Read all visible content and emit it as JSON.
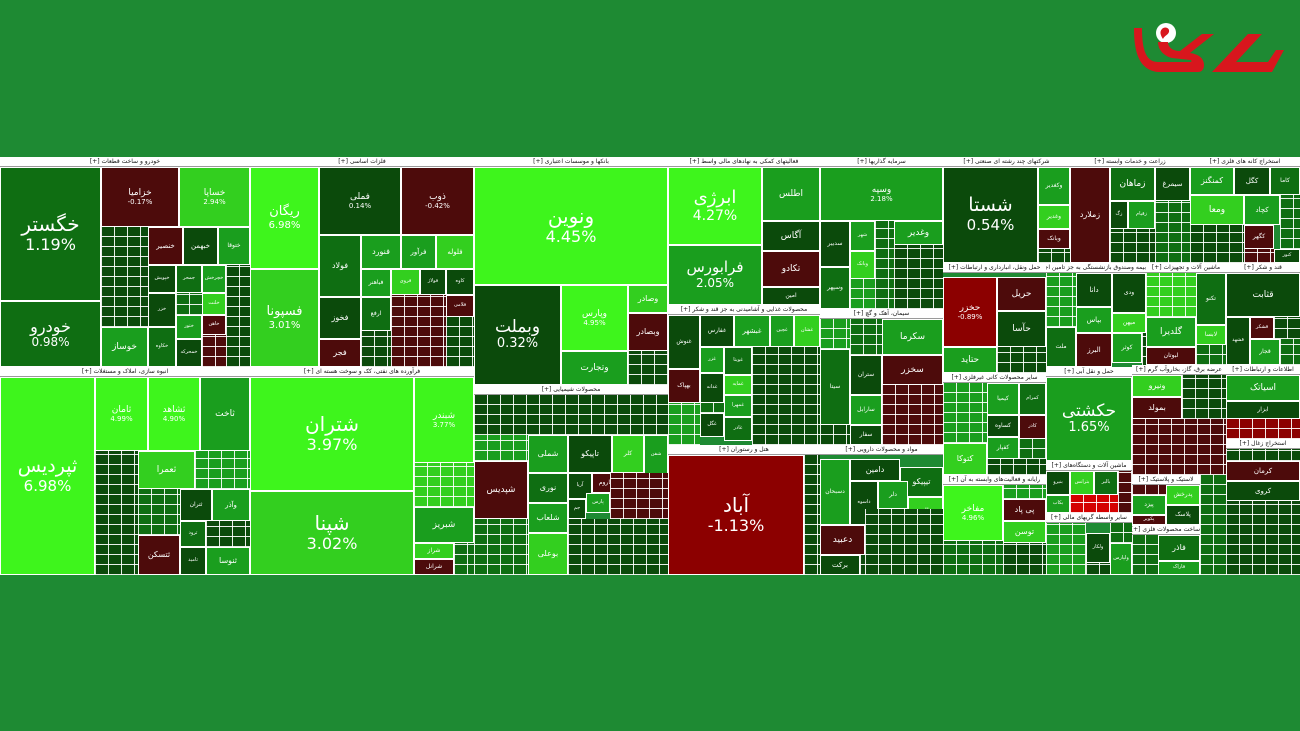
{
  "logo": {
    "name": "rokna-logo",
    "color": "#d8161d",
    "accent": "#ffffff"
  },
  "colors": {
    "background": "#1e8a33",
    "scale": [
      {
        "from": -3,
        "color": "#d40000"
      },
      {
        "from": -1.5,
        "color": "#8c0000"
      },
      {
        "from": -0.5,
        "color": "#4d0b0b"
      },
      {
        "from": 0,
        "color": "#0b4a0b"
      },
      {
        "from": 0.6,
        "color": "#0f6e12"
      },
      {
        "from": 1.2,
        "color": "#1a9e1e"
      },
      {
        "from": 2.5,
        "color": "#33cf1f"
      },
      {
        "from": 3.5,
        "color": "#3ef51c"
      }
    ]
  },
  "chart_data": {
    "type": "heatmap",
    "sectors": [
      {
        "name": "خودرو و ساخت قطعات [+]",
        "tiles": [
          {
            "symbol": "خگستر",
            "change": 1.19
          },
          {
            "symbol": "خودرو",
            "change": 0.98
          },
          {
            "symbol": "خزامیا",
            "change": -0.17
          },
          {
            "symbol": "خساپا",
            "change": 2.94
          },
          {
            "symbol": "خنصیر",
            "change": null
          },
          {
            "symbol": "خبهمن",
            "change": null
          },
          {
            "symbol": "ختوقا",
            "change": null
          },
          {
            "symbol": "خپویش",
            "change": null
          },
          {
            "symbol": "جمحر",
            "change": null
          },
          {
            "symbol": "خچرخش",
            "change": null
          },
          {
            "symbol": "خلنت",
            "change": null
          },
          {
            "symbol": "خاهن",
            "change": null
          },
          {
            "symbol": "خزر",
            "change": null
          },
          {
            "symbol": "ختور",
            "change": null
          },
          {
            "symbol": "خمحرکه",
            "change": null
          },
          {
            "symbol": "خکاوه",
            "change": null
          },
          {
            "symbol": "خوساز",
            "change": null
          }
        ]
      },
      {
        "name": "فلزات اساسی [+]",
        "tiles": [
          {
            "symbol": "ریگان",
            "change": 6.98
          },
          {
            "symbol": "فسپونا",
            "change": 3.01
          },
          {
            "symbol": "فملی",
            "change": 0.14
          },
          {
            "symbol": "ذوب",
            "change": -0.42
          },
          {
            "symbol": "فخوز",
            "change": null
          },
          {
            "symbol": "فولاد",
            "change": null
          },
          {
            "symbol": "فرآور",
            "change": null
          },
          {
            "symbol": "فلوله",
            "change": null
          },
          {
            "symbol": "فجر",
            "change": null
          },
          {
            "symbol": "فولاژ",
            "change": null
          },
          {
            "symbol": "فنورد",
            "change": null
          },
          {
            "symbol": "کاوه",
            "change": null
          },
          {
            "symbol": "ارفع",
            "change": null
          },
          {
            "symbol": "فباهنر",
            "change": null
          },
          {
            "symbol": "فروی",
            "change": null
          },
          {
            "symbol": "فلامی",
            "change": null
          }
        ]
      },
      {
        "name": "بانکها و موسسات اعتباری [+]",
        "tiles": [
          {
            "symbol": "ونوین",
            "change": 4.45
          },
          {
            "symbol": "وبملت",
            "change": 0.32
          },
          {
            "symbol": "وپارس",
            "change": 4.95
          },
          {
            "symbol": "وتجارت",
            "change": null
          },
          {
            "symbol": "وصادر",
            "change": null
          },
          {
            "symbol": "وبصادر",
            "change": null
          }
        ]
      },
      {
        "name": "فعالیتهای کمکی به نهادهای مالی واسط [+]",
        "tiles": [
          {
            "symbol": "ابرژی",
            "change": 4.27
          },
          {
            "symbol": "فرابورس",
            "change": 2.05
          },
          {
            "symbol": "تکادو",
            "change": null
          },
          {
            "symbol": "امین",
            "change": null
          },
          {
            "symbol": "اطلس",
            "change": null
          },
          {
            "symbol": "آگاس",
            "change": null
          }
        ]
      },
      {
        "name": "سرمایه گذاریها [+]",
        "tiles": [
          {
            "symbol": "وسپه",
            "change": 2.18
          },
          {
            "symbol": "وغدیر",
            "change": null
          },
          {
            "symbol": "سدبیر",
            "change": null
          },
          {
            "symbol": "وسپهر",
            "change": null
          },
          {
            "symbol": "شهر",
            "change": null
          },
          {
            "symbol": "وبانک",
            "change": null
          }
        ]
      },
      {
        "name": "شرکتهای چند رشته ای صنعتی [+]",
        "tiles": [
          {
            "symbol": "شستا",
            "change": 0.54
          },
          {
            "symbol": "وکغدیر",
            "change": null
          },
          {
            "symbol": "وغدیر",
            "change": null
          },
          {
            "symbol": "وبانک",
            "change": null
          }
        ]
      },
      {
        "name": "زراعت و خدمات وابسته [+]",
        "tiles": [
          {
            "symbol": "زملارد",
            "change": null
          },
          {
            "symbol": "سیمرغ",
            "change": null
          },
          {
            "symbol": "زقیام",
            "change": null
          },
          {
            "symbol": "زگ",
            "change": null
          },
          {
            "symbol": "زماهان",
            "change": null
          }
        ]
      },
      {
        "name": "استخراج کانه های فلزی [+]",
        "tiles": [
          {
            "symbol": "کگل",
            "change": null
          },
          {
            "symbol": "کاما",
            "change": null
          },
          {
            "symbol": "کچاد",
            "change": null
          },
          {
            "symbol": "ومعا",
            "change": null
          },
          {
            "symbol": "کگهر",
            "change": null
          },
          {
            "symbol": "کنور",
            "change": null
          },
          {
            "symbol": "کمنگنز",
            "change": null
          }
        ]
      },
      {
        "name": "انبوه سازی، املاک و مستغلات [+]",
        "tiles": [
          {
            "symbol": "ثپردیس",
            "change": 6.98
          },
          {
            "symbol": "ثامان",
            "change": 4.99
          },
          {
            "symbol": "ثشاهد",
            "change": 4.9
          },
          {
            "symbol": "ثاخت",
            "change": null
          },
          {
            "symbol": "ثتران",
            "change": null
          },
          {
            "symbol": "ثرود",
            "change": null
          },
          {
            "symbol": "وآذر",
            "change": null
          },
          {
            "symbol": "ثعمرا",
            "change": null
          },
          {
            "symbol": "ثتسکن",
            "change": null
          },
          {
            "symbol": "ثامید",
            "change": null
          },
          {
            "symbol": "ثنوسا",
            "change": null
          }
        ]
      },
      {
        "name": "فرآورده های نفتی، کک و سوخت هسته ای [+]",
        "tiles": [
          {
            "symbol": "شتران",
            "change": 3.97
          },
          {
            "symbol": "شپنا",
            "change": 3.02
          },
          {
            "symbol": "شبندر",
            "change": 3.77
          },
          {
            "symbol": "شبریز",
            "change": null
          },
          {
            "symbol": "شراز",
            "change": null
          },
          {
            "symbol": "شرانل",
            "change": null
          }
        ]
      },
      {
        "name": "محصولات شیمیایی [+]",
        "tiles": [
          {
            "symbol": "شفن",
            "change": null
          },
          {
            "symbol": "کلر",
            "change": null
          },
          {
            "symbol": "شاروم",
            "change": null
          },
          {
            "symbol": "آریا",
            "change": null
          },
          {
            "symbol": "شملی",
            "change": null
          },
          {
            "symbol": "تاپیکو",
            "change": null
          },
          {
            "symbol": "نوری",
            "change": null
          },
          {
            "symbol": "شلعاب",
            "change": null
          },
          {
            "symbol": "بوعلی",
            "change": null
          },
          {
            "symbol": "شپدیس",
            "change": null
          },
          {
            "symbol": "جم",
            "change": null
          },
          {
            "symbol": "پارس",
            "change": null
          }
        ]
      },
      {
        "name": "محصولات غذایی و آشامیدنی به جز قند و شکر [+]",
        "tiles": [
          {
            "symbol": "غفارس",
            "change": null
          },
          {
            "symbol": "غبشهر",
            "change": null
          },
          {
            "symbol": "غنوش",
            "change": null
          },
          {
            "symbol": "غویتا",
            "change": null
          },
          {
            "symbol": "غزر",
            "change": null
          },
          {
            "symbol": "غمایه",
            "change": null
          },
          {
            "symbol": "بهپاک",
            "change": null
          },
          {
            "symbol": "غدانه",
            "change": null
          },
          {
            "symbol": "غمهرا",
            "change": null
          },
          {
            "symbol": "غگل",
            "change": null
          },
          {
            "symbol": "غادر",
            "change": null
          },
          {
            "symbol": "غچین",
            "change": null
          },
          {
            "symbol": "غشان",
            "change": null
          }
        ]
      },
      {
        "name": "هتل و رستوران [+]",
        "tiles": [
          {
            "symbol": "آباد",
            "change": -1.13
          }
        ]
      },
      {
        "name": "سیمان، آهک و گچ [+]",
        "tiles": [
          {
            "symbol": "سخزر",
            "change": null
          },
          {
            "symbol": "ستران",
            "change": null
          },
          {
            "symbol": "سارابل",
            "change": null
          },
          {
            "symbol": "سفار",
            "change": null
          },
          {
            "symbol": "سیتا",
            "change": null
          },
          {
            "symbol": "سکرما",
            "change": null
          }
        ]
      },
      {
        "name": "مواد و محصولات دارویی [+]",
        "tiles": [
          {
            "symbol": "دامین",
            "change": null
          },
          {
            "symbol": "تیپیکو",
            "change": null
          },
          {
            "symbol": "دلر",
            "change": null
          },
          {
            "symbol": "والبر",
            "change": null
          },
          {
            "symbol": "دعبید",
            "change": null
          },
          {
            "symbol": "برکت",
            "change": null
          },
          {
            "symbol": "دسبحان",
            "change": null
          },
          {
            "symbol": "داسوه",
            "change": null
          }
        ]
      },
      {
        "name": "حمل ونقل، انبارداری و ارتباطات [+]",
        "tiles": [
          {
            "symbol": "حخزر",
            "change": -0.89
          },
          {
            "symbol": "حریل",
            "change": null
          },
          {
            "symbol": "حآسا",
            "change": null
          },
          {
            "symbol": "حتاید",
            "change": null
          }
        ]
      },
      {
        "name": "سایر محصولات کانی غیرفلزی [+]",
        "tiles": [
          {
            "symbol": "کیمیا",
            "change": null
          },
          {
            "symbol": "کساوه",
            "change": null
          },
          {
            "symbol": "کمرام",
            "change": null
          },
          {
            "symbol": "کفپار",
            "change": null
          },
          {
            "symbol": "کتوکا",
            "change": null
          },
          {
            "symbol": "کاذر",
            "change": null
          }
        ]
      },
      {
        "name": "رایانه و فعالیت‌های وابسته به آن [+]",
        "tiles": [
          {
            "symbol": "مفاخر",
            "change": 4.96
          },
          {
            "symbol": "توسن",
            "change": null
          },
          {
            "symbol": "پی پاد",
            "change": null
          }
        ]
      },
      {
        "name": "بیمه وصندوق بازنشستگی به جز تامین اجتماعی [+]",
        "tiles": [
          {
            "symbol": "دانا",
            "change": null
          },
          {
            "symbol": "بپاس",
            "change": null
          },
          {
            "symbol": "ودی",
            "change": null
          },
          {
            "symbol": "ملت",
            "change": null
          },
          {
            "symbol": "کوثر",
            "change": null
          },
          {
            "symbol": "میهن",
            "change": null
          },
          {
            "symbol": "البرز",
            "change": null
          }
        ]
      },
      {
        "name": "ماشین آلات و تجهیزات [+]",
        "tiles": [
          {
            "symbol": "تکنو",
            "change": null
          },
          {
            "symbol": "گلدیرا",
            "change": null
          },
          {
            "symbol": "لابسا",
            "change": null
          },
          {
            "symbol": "لبوتان",
            "change": null
          }
        ]
      },
      {
        "name": "قند و شکر [+]",
        "tiles": [
          {
            "symbol": "قشکر",
            "change": null
          },
          {
            "symbol": "قشهد",
            "change": null
          },
          {
            "symbol": "قجار",
            "change": null
          },
          {
            "symbol": "قثابت",
            "change": null
          }
        ]
      },
      {
        "name": "حمل و نقل آبی [+]",
        "tiles": [
          {
            "symbol": "حکشتی",
            "change": 1.65
          }
        ]
      },
      {
        "name": "عرضه برق، گاز، بخاروآب گرم [+]",
        "tiles": [
          {
            "symbol": "ونیرو",
            "change": null
          },
          {
            "symbol": "بمولد",
            "change": null
          }
        ]
      },
      {
        "name": "اطلاعات و ارتباطات [+]",
        "tiles": [
          {
            "symbol": "اسیاتک",
            "change": null
          },
          {
            "symbol": "ابزار",
            "change": null
          }
        ]
      },
      {
        "name": "لاستیک و پلاستیک [+]",
        "tiles": [
          {
            "symbol": "پیزد",
            "change": null
          },
          {
            "symbol": "پدرخش",
            "change": null
          },
          {
            "symbol": "پکویر",
            "change": null
          },
          {
            "symbol": "پلاسک",
            "change": null
          }
        ]
      },
      {
        "name": "سایر واسطه گریهای مالی [+]",
        "tiles": [
          {
            "symbol": "ولکار",
            "change": null
          },
          {
            "symbol": "ولپارس",
            "change": null
          }
        ]
      },
      {
        "name": "ساخت محصولات فلزی [+]",
        "tiles": [
          {
            "symbol": "فاذر",
            "change": null
          },
          {
            "symbol": "فاراک",
            "change": null
          }
        ]
      },
      {
        "name": "استخراج زغال [+]",
        "tiles": [
          {
            "symbol": "کرمان",
            "change": null
          },
          {
            "symbol": "کروی",
            "change": null
          }
        ]
      },
      {
        "name": "ماشین آلات و دستگاه‌های [+]",
        "tiles": [
          {
            "symbol": "بنیرو",
            "change": null
          },
          {
            "symbol": "بالبر",
            "change": null
          },
          {
            "symbol": "بکاب",
            "change": null
          },
          {
            "symbol": "بترانس",
            "change": null
          }
        ]
      }
    ]
  }
}
